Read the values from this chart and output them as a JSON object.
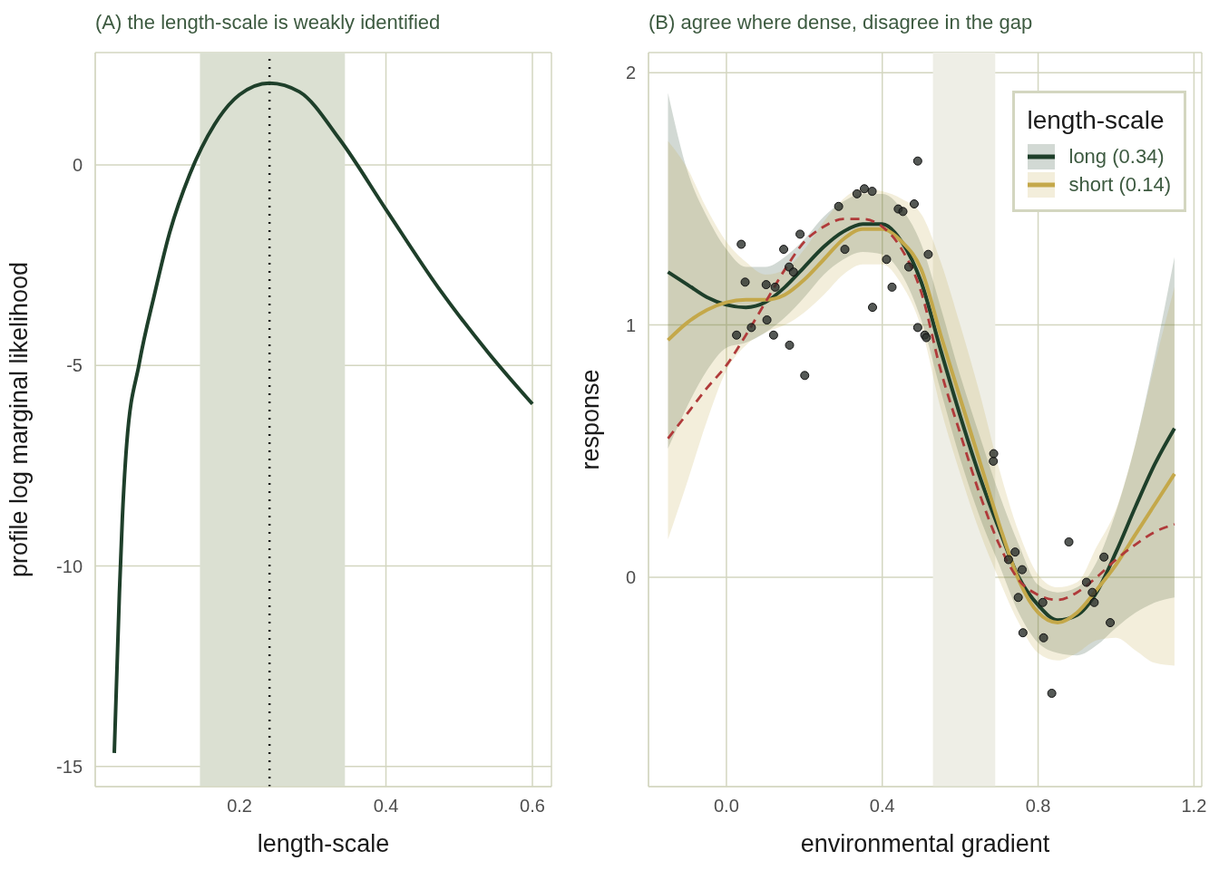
{
  "chart_data": [
    {
      "type": "line",
      "title": "(A) the length-scale is weakly identified",
      "xlabel": "length-scale",
      "ylabel": "profile log marginal likelihood",
      "x": [
        0.029,
        0.036,
        0.04,
        0.046,
        0.063,
        0.084,
        0.104,
        0.132,
        0.166,
        0.2,
        0.241,
        0.282,
        0.337,
        0.4,
        0.473,
        0.541,
        0.6
      ],
      "values": [
        -14.66,
        -10.68,
        -8.82,
        -6.95,
        -4.96,
        -3.22,
        -1.73,
        -0.24,
        1.01,
        1.75,
        2.04,
        1.82,
        0.63,
        -1.11,
        -3.1,
        -4.71,
        -5.96
      ],
      "color": "#1e3f2a",
      "xlim": [
        0.003,
        0.626
      ],
      "ylim": [
        -15.5,
        2.8
      ],
      "xticks": [
        0.2,
        0.4,
        0.6
      ],
      "yticks": [
        -15,
        -10,
        -5,
        0
      ],
      "grid": true,
      "bands": [
        {
          "axis": "x",
          "from": 0.146,
          "to": 0.344,
          "color": "#dbe0d2"
        }
      ],
      "ref_lines": [
        {
          "axis": "x",
          "value": 0.241,
          "color": "#1a1a1a",
          "line_style": "dotted"
        }
      ]
    },
    {
      "type": "line",
      "title": "(B) agree where dense, disagree in the gap",
      "xlabel": "environmental gradient",
      "ylabel": "response",
      "legend_title": "length-scale",
      "legend": "top right",
      "x": [
        -0.15,
        -0.1,
        -0.05,
        0,
        0.05,
        0.1,
        0.15,
        0.2,
        0.25,
        0.3,
        0.35,
        0.4,
        0.45,
        0.5,
        0.55,
        0.6,
        0.65,
        0.7,
        0.75,
        0.8,
        0.85,
        0.9,
        0.95,
        1.0,
        1.05,
        1.1,
        1.15
      ],
      "series": [
        {
          "name": "long (0.34)",
          "color": "#1e3f2a",
          "values": [
            1.21,
            1.16,
            1.11,
            1.08,
            1.07,
            1.09,
            1.15,
            1.23,
            1.31,
            1.37,
            1.4,
            1.4,
            1.33,
            1.17,
            0.9,
            0.64,
            0.4,
            0.19,
            0.0,
            -0.11,
            -0.17,
            -0.15,
            -0.06,
            0.1,
            0.28,
            0.45,
            0.59
          ],
          "lower": [
            0.51,
            0.68,
            0.82,
            0.91,
            0.93,
            0.97,
            1.03,
            1.11,
            1.2,
            1.26,
            1.29,
            1.28,
            1.2,
            1.02,
            0.74,
            0.47,
            0.24,
            0.05,
            -0.14,
            -0.26,
            -0.3,
            -0.31,
            -0.27,
            -0.2,
            -0.14,
            -0.1,
            -0.08
          ],
          "upper": [
            1.92,
            1.61,
            1.43,
            1.3,
            1.23,
            1.23,
            1.27,
            1.34,
            1.43,
            1.49,
            1.52,
            1.52,
            1.46,
            1.32,
            1.07,
            0.8,
            0.56,
            0.33,
            0.13,
            -0.03,
            -0.06,
            -0.04,
            0.06,
            0.26,
            0.53,
            0.88,
            1.27
          ]
        },
        {
          "name": "short (0.14)",
          "color": "#c4a84a",
          "values": [
            0.94,
            1.01,
            1.06,
            1.09,
            1.1,
            1.1,
            1.12,
            1.18,
            1.26,
            1.34,
            1.38,
            1.38,
            1.33,
            1.22,
            0.96,
            0.71,
            0.46,
            0.21,
            -0.01,
            -0.14,
            -0.18,
            -0.14,
            -0.05,
            0.05,
            0.17,
            0.29,
            0.41
          ],
          "lower": [
            0.15,
            0.38,
            0.62,
            0.82,
            0.92,
            0.97,
            1.0,
            1.05,
            1.12,
            1.2,
            1.24,
            1.24,
            1.16,
            0.99,
            0.67,
            0.41,
            0.18,
            -0.01,
            -0.18,
            -0.3,
            -0.33,
            -0.3,
            -0.25,
            -0.24,
            -0.29,
            -0.34,
            -0.35
          ],
          "upper": [
            1.73,
            1.62,
            1.46,
            1.33,
            1.25,
            1.2,
            1.22,
            1.3,
            1.41,
            1.5,
            1.54,
            1.53,
            1.5,
            1.44,
            1.25,
            1.0,
            0.73,
            0.43,
            0.18,
            0.01,
            -0.04,
            -0.02,
            0.12,
            0.27,
            0.53,
            0.85,
            1.15
          ]
        },
        {
          "color": "#b03a3a",
          "line_style": "dashed",
          "values": [
            0.55,
            0.65,
            0.75,
            0.84,
            0.96,
            1.09,
            1.22,
            1.33,
            1.39,
            1.42,
            1.42,
            1.39,
            1.3,
            1.13,
            0.82,
            0.57,
            0.33,
            0.13,
            -0.01,
            -0.07,
            -0.09,
            -0.06,
            0.0,
            0.07,
            0.13,
            0.18,
            0.21
          ]
        },
        {
          "type": "scatter",
          "color": "#2b2f2c",
          "marker": "circle",
          "x": [
            0.026,
            0.038,
            0.048,
            0.064,
            0.102,
            0.104,
            0.121,
            0.125,
            0.147,
            0.161,
            0.162,
            0.172,
            0.189,
            0.201,
            0.288,
            0.304,
            0.335,
            0.354,
            0.374,
            0.375,
            0.411,
            0.425,
            0.441,
            0.453,
            0.468,
            0.482,
            0.491,
            0.491,
            0.509,
            0.513,
            0.518,
            0.685,
            0.686,
            0.724,
            0.741,
            0.749,
            0.759,
            0.761,
            0.812,
            0.814,
            0.835,
            0.879,
            0.924,
            0.939,
            0.944,
            0.969,
            0.985
          ],
          "values": [
            0.96,
            1.32,
            1.17,
            0.99,
            1.16,
            1.02,
            0.96,
            1.15,
            1.3,
            1.23,
            0.92,
            1.21,
            1.36,
            0.8,
            1.47,
            1.3,
            1.52,
            1.54,
            1.53,
            1.07,
            1.26,
            1.15,
            1.46,
            1.45,
            1.23,
            1.48,
            1.65,
            0.99,
            0.96,
            0.95,
            1.28,
            0.46,
            0.49,
            0.07,
            0.1,
            -0.08,
            0.03,
            -0.22,
            -0.1,
            -0.24,
            -0.46,
            0.14,
            -0.02,
            -0.06,
            -0.1,
            0.08,
            -0.18
          ]
        }
      ],
      "xlim": [
        -0.2,
        1.22
      ],
      "ylim": [
        -0.83,
        2.08
      ],
      "xticks": [
        {
          "value": 0,
          "label": "0.0"
        },
        0.4,
        0.8,
        1.2
      ],
      "yticks": [
        0,
        1,
        2
      ],
      "grid": true,
      "bands": [
        {
          "axis": "x",
          "from": 0.53,
          "to": 0.69,
          "color": "#eeeee6"
        }
      ]
    }
  ]
}
